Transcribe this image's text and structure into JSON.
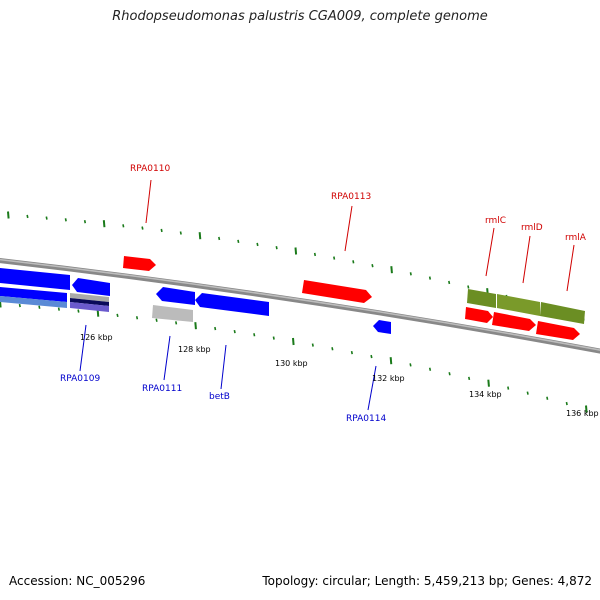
{
  "title": "Rhodopseudomonas palustris CGA009, complete genome",
  "accession": "Accession: NC_005296",
  "stats": "Topology: circular; Length: 5,459,213 bp; Genes: 4,872",
  "colors": {
    "forward_gene": "#ff0000",
    "reverse_gene": "#0000ff",
    "operon": "#6b8e23",
    "grey": "#bbbbbb",
    "backbone": "#888888",
    "tick": "#1a7a1a"
  },
  "scale_labels": [
    "126 kbp",
    "128 kbp",
    "130 kbp",
    "132 kbp",
    "134 kbp",
    "136 kbp"
  ],
  "labels": {
    "top": [
      "RPA0110",
      "RPA0113",
      "rmlC",
      "rmlD",
      "rmlA"
    ],
    "bottom": [
      "RPA0109",
      "RPA0111",
      "betB",
      "RPA0114"
    ]
  }
}
